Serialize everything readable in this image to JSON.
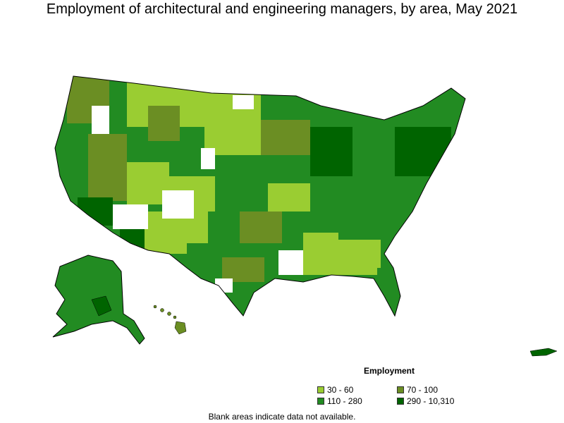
{
  "title": "Employment of architectural and engineering managers, by area, May 2021",
  "legend": {
    "title": "Employment",
    "items": [
      {
        "label": "30 - 60",
        "color": "#9acd32"
      },
      {
        "label": "70 - 100",
        "color": "#6b8e23"
      },
      {
        "label": "110 - 280",
        "color": "#228b22"
      },
      {
        "label": "290 - 10,310",
        "color": "#006400"
      }
    ]
  },
  "note": "Blank areas indicate data not available."
}
